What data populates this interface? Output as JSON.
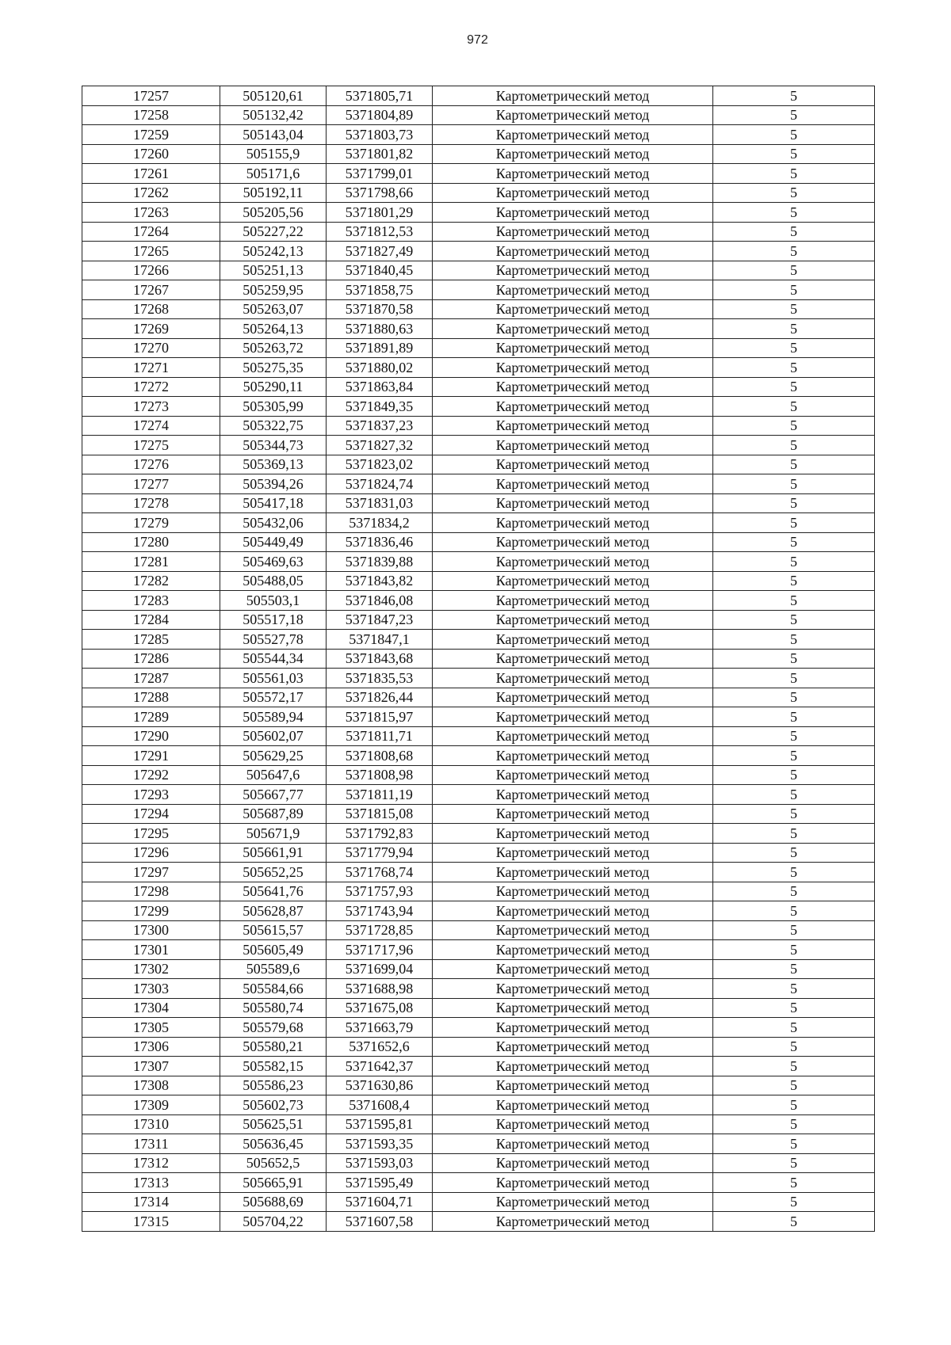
{
  "page_number": "972",
  "table": {
    "rows": [
      [
        "17257",
        "505120,61",
        "5371805,71",
        "Картометрический метод",
        "5"
      ],
      [
        "17258",
        "505132,42",
        "5371804,89",
        "Картометрический метод",
        "5"
      ],
      [
        "17259",
        "505143,04",
        "5371803,73",
        "Картометрический метод",
        "5"
      ],
      [
        "17260",
        "505155,9",
        "5371801,82",
        "Картометрический метод",
        "5"
      ],
      [
        "17261",
        "505171,6",
        "5371799,01",
        "Картометрический метод",
        "5"
      ],
      [
        "17262",
        "505192,11",
        "5371798,66",
        "Картометрический метод",
        "5"
      ],
      [
        "17263",
        "505205,56",
        "5371801,29",
        "Картометрический метод",
        "5"
      ],
      [
        "17264",
        "505227,22",
        "5371812,53",
        "Картометрический метод",
        "5"
      ],
      [
        "17265",
        "505242,13",
        "5371827,49",
        "Картометрический метод",
        "5"
      ],
      [
        "17266",
        "505251,13",
        "5371840,45",
        "Картометрический метод",
        "5"
      ],
      [
        "17267",
        "505259,95",
        "5371858,75",
        "Картометрический метод",
        "5"
      ],
      [
        "17268",
        "505263,07",
        "5371870,58",
        "Картометрический метод",
        "5"
      ],
      [
        "17269",
        "505264,13",
        "5371880,63",
        "Картометрический метод",
        "5"
      ],
      [
        "17270",
        "505263,72",
        "5371891,89",
        "Картометрический метод",
        "5"
      ],
      [
        "17271",
        "505275,35",
        "5371880,02",
        "Картометрический метод",
        "5"
      ],
      [
        "17272",
        "505290,11",
        "5371863,84",
        "Картометрический метод",
        "5"
      ],
      [
        "17273",
        "505305,99",
        "5371849,35",
        "Картометрический метод",
        "5"
      ],
      [
        "17274",
        "505322,75",
        "5371837,23",
        "Картометрический метод",
        "5"
      ],
      [
        "17275",
        "505344,73",
        "5371827,32",
        "Картометрический метод",
        "5"
      ],
      [
        "17276",
        "505369,13",
        "5371823,02",
        "Картометрический метод",
        "5"
      ],
      [
        "17277",
        "505394,26",
        "5371824,74",
        "Картометрический метод",
        "5"
      ],
      [
        "17278",
        "505417,18",
        "5371831,03",
        "Картометрический метод",
        "5"
      ],
      [
        "17279",
        "505432,06",
        "5371834,2",
        "Картометрический метод",
        "5"
      ],
      [
        "17280",
        "505449,49",
        "5371836,46",
        "Картометрический метод",
        "5"
      ],
      [
        "17281",
        "505469,63",
        "5371839,88",
        "Картометрический метод",
        "5"
      ],
      [
        "17282",
        "505488,05",
        "5371843,82",
        "Картометрический метод",
        "5"
      ],
      [
        "17283",
        "505503,1",
        "5371846,08",
        "Картометрический метод",
        "5"
      ],
      [
        "17284",
        "505517,18",
        "5371847,23",
        "Картометрический метод",
        "5"
      ],
      [
        "17285",
        "505527,78",
        "5371847,1",
        "Картометрический метод",
        "5"
      ],
      [
        "17286",
        "505544,34",
        "5371843,68",
        "Картометрический метод",
        "5"
      ],
      [
        "17287",
        "505561,03",
        "5371835,53",
        "Картометрический метод",
        "5"
      ],
      [
        "17288",
        "505572,17",
        "5371826,44",
        "Картометрический метод",
        "5"
      ],
      [
        "17289",
        "505589,94",
        "5371815,97",
        "Картометрический метод",
        "5"
      ],
      [
        "17290",
        "505602,07",
        "5371811,71",
        "Картометрический метод",
        "5"
      ],
      [
        "17291",
        "505629,25",
        "5371808,68",
        "Картометрический метод",
        "5"
      ],
      [
        "17292",
        "505647,6",
        "5371808,98",
        "Картометрический метод",
        "5"
      ],
      [
        "17293",
        "505667,77",
        "5371811,19",
        "Картометрический метод",
        "5"
      ],
      [
        "17294",
        "505687,89",
        "5371815,08",
        "Картометрический метод",
        "5"
      ],
      [
        "17295",
        "505671,9",
        "5371792,83",
        "Картометрический метод",
        "5"
      ],
      [
        "17296",
        "505661,91",
        "5371779,94",
        "Картометрический метод",
        "5"
      ],
      [
        "17297",
        "505652,25",
        "5371768,74",
        "Картометрический метод",
        "5"
      ],
      [
        "17298",
        "505641,76",
        "5371757,93",
        "Картометрический метод",
        "5"
      ],
      [
        "17299",
        "505628,87",
        "5371743,94",
        "Картометрический метод",
        "5"
      ],
      [
        "17300",
        "505615,57",
        "5371728,85",
        "Картометрический метод",
        "5"
      ],
      [
        "17301",
        "505605,49",
        "5371717,96",
        "Картометрический метод",
        "5"
      ],
      [
        "17302",
        "505589,6",
        "5371699,04",
        "Картометрический метод",
        "5"
      ],
      [
        "17303",
        "505584,66",
        "5371688,98",
        "Картометрический метод",
        "5"
      ],
      [
        "17304",
        "505580,74",
        "5371675,08",
        "Картометрический метод",
        "5"
      ],
      [
        "17305",
        "505579,68",
        "5371663,79",
        "Картометрический метод",
        "5"
      ],
      [
        "17306",
        "505580,21",
        "5371652,6",
        "Картометрический метод",
        "5"
      ],
      [
        "17307",
        "505582,15",
        "5371642,37",
        "Картометрический метод",
        "5"
      ],
      [
        "17308",
        "505586,23",
        "5371630,86",
        "Картометрический метод",
        "5"
      ],
      [
        "17309",
        "505602,73",
        "5371608,4",
        "Картометрический метод",
        "5"
      ],
      [
        "17310",
        "505625,51",
        "5371595,81",
        "Картометрический метод",
        "5"
      ],
      [
        "17311",
        "505636,45",
        "5371593,35",
        "Картометрический метод",
        "5"
      ],
      [
        "17312",
        "505652,5",
        "5371593,03",
        "Картометрический метод",
        "5"
      ],
      [
        "17313",
        "505665,91",
        "5371595,49",
        "Картометрический метод",
        "5"
      ],
      [
        "17314",
        "505688,69",
        "5371604,71",
        "Картометрический метод",
        "5"
      ],
      [
        "17315",
        "505704,22",
        "5371607,58",
        "Картометрический метод",
        "5"
      ]
    ]
  }
}
